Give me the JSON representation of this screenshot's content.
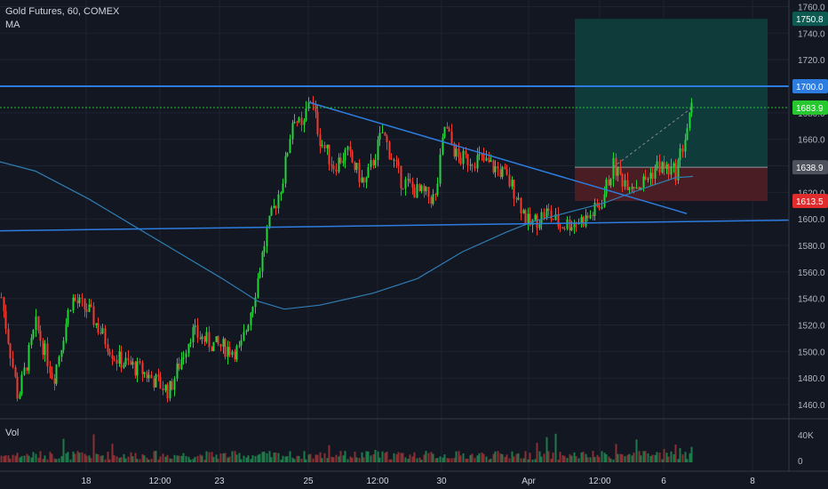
{
  "header": {
    "title": "Gold Futures, 60, COMEX",
    "indicator": "MA"
  },
  "volume_pane": {
    "label": "Vol",
    "ticks": [
      "40K",
      "0"
    ]
  },
  "colors": {
    "background": "#131722",
    "up": "#26d33a",
    "down": "#ef3b2f",
    "ma": "#2f7db3",
    "trendline": "#2d7de0",
    "grid": "#1f2331",
    "profit_zone": "#0f3b3a",
    "loss_zone": "#4a1d24",
    "price_label_bg": "#2d7de0",
    "target_label_bg": "#0d5a52",
    "current_label_bg": "#26c72f",
    "entry_label_bg": "#4f525c",
    "stop_label_bg": "#e02c2c"
  },
  "chart_data": {
    "type": "candlestick",
    "title": "Gold Futures, 60, COMEX",
    "indicator": "MA",
    "ylim": [
      1450,
      1765
    ],
    "y_ticks": [
      1760,
      1740,
      1720,
      1700,
      1680,
      1660,
      1640,
      1620,
      1600,
      1580,
      1560,
      1540,
      1520,
      1500,
      1480,
      1460
    ],
    "x_ticks": [
      "18",
      "12:00",
      "23",
      "25",
      "12:00",
      "30",
      "Apr",
      "12:00",
      "6",
      "8"
    ],
    "price_path": [
      [
        0,
        1545
      ],
      [
        20,
        1465
      ],
      [
        40,
        1520
      ],
      [
        60,
        1480
      ],
      [
        80,
        1540
      ],
      [
        100,
        1530
      ],
      [
        130,
        1495
      ],
      [
        160,
        1485
      ],
      [
        190,
        1470
      ],
      [
        215,
        1515
      ],
      [
        240,
        1505
      ],
      [
        270,
        1500
      ],
      [
        285,
        1540
      ],
      [
        300,
        1590
      ],
      [
        318,
        1630
      ],
      [
        330,
        1680
      ],
      [
        340,
        1665
      ],
      [
        348,
        1695
      ],
      [
        360,
        1660
      ],
      [
        375,
        1640
      ],
      [
        390,
        1650
      ],
      [
        410,
        1625
      ],
      [
        430,
        1665
      ],
      [
        450,
        1630
      ],
      [
        470,
        1620
      ],
      [
        490,
        1615
      ],
      [
        500,
        1670
      ],
      [
        515,
        1645
      ],
      [
        540,
        1645
      ],
      [
        565,
        1635
      ],
      [
        580,
        1620
      ],
      [
        595,
        1595
      ],
      [
        615,
        1605
      ],
      [
        630,
        1595
      ],
      [
        660,
        1600
      ],
      [
        675,
        1610
      ],
      [
        690,
        1640
      ],
      [
        700,
        1630
      ],
      [
        720,
        1625
      ],
      [
        740,
        1640
      ],
      [
        760,
        1635
      ],
      [
        770,
        1660
      ],
      [
        779,
        1684
      ]
    ],
    "moving_average": [
      [
        0,
        1643
      ],
      [
        40,
        1636
      ],
      [
        100,
        1615
      ],
      [
        150,
        1595
      ],
      [
        200,
        1575
      ],
      [
        250,
        1555
      ],
      [
        290,
        1538
      ],
      [
        320,
        1532
      ],
      [
        360,
        1535
      ],
      [
        420,
        1544
      ],
      [
        470,
        1555
      ],
      [
        520,
        1575
      ],
      [
        570,
        1590
      ],
      [
        600,
        1598
      ],
      [
        640,
        1605
      ],
      [
        680,
        1612
      ],
      [
        720,
        1622
      ],
      [
        760,
        1631
      ],
      [
        780,
        1632
      ]
    ],
    "price_lines": [
      {
        "label": "1750.8",
        "price": 1750.8,
        "role": "target"
      },
      {
        "label": "1700.0",
        "price": 1700.0,
        "role": "horizontal-resistance"
      },
      {
        "label": "1683.9",
        "price": 1683.9,
        "role": "last-price"
      },
      {
        "label": "1638.9",
        "price": 1638.9,
        "role": "entry"
      },
      {
        "label": "1613.5",
        "price": 1613.5,
        "role": "stop"
      }
    ],
    "position": {
      "entry": 1638.9,
      "target": 1750.8,
      "stop": 1613.5
    }
  }
}
